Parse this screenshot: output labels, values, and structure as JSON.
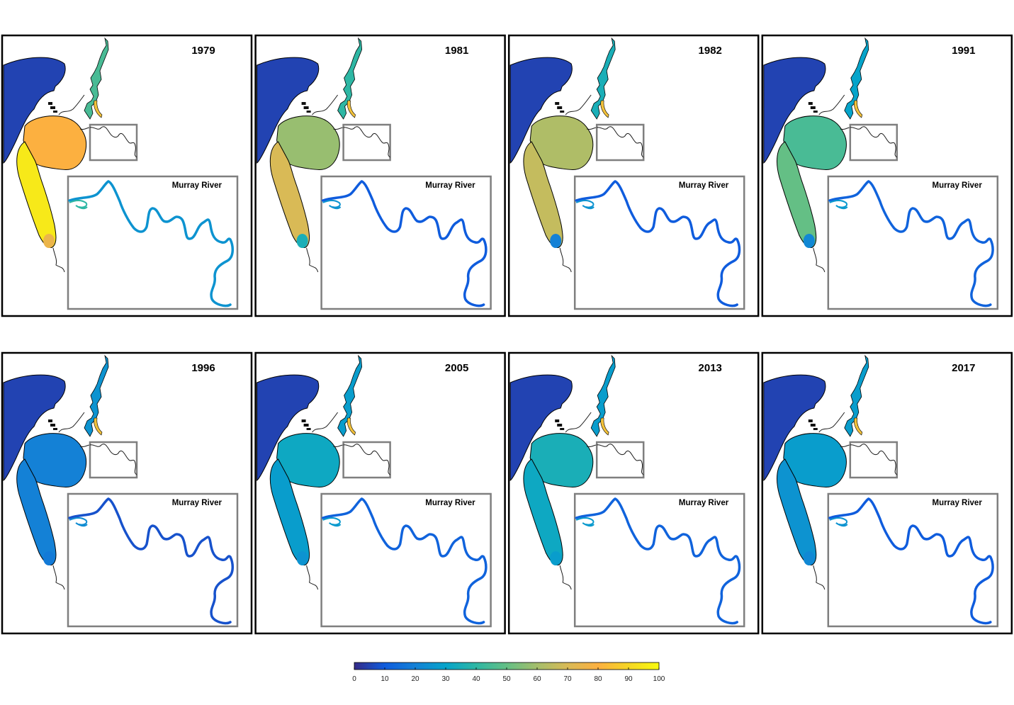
{
  "panels": [
    {
      "year": "1979",
      "inset_label": "Murray River",
      "lake_value": 80,
      "coorong_value": 95,
      "coorong_tip_value": 75,
      "upper_value": 45,
      "inset_value": 25
    },
    {
      "year": "1981",
      "inset_label": "Murray River",
      "lake_value": 58,
      "coorong_value": 70,
      "coorong_tip_value": 35,
      "upper_value": 40,
      "inset_value": 10
    },
    {
      "year": "1982",
      "inset_label": "Murray River",
      "lake_value": 62,
      "coorong_value": 66,
      "coorong_tip_value": 20,
      "upper_value": 35,
      "inset_value": 10
    },
    {
      "year": "1991",
      "inset_label": "Murray River",
      "lake_value": 45,
      "coorong_value": 50,
      "coorong_tip_value": 22,
      "upper_value": 30,
      "inset_value": 12
    },
    {
      "year": "1996",
      "inset_label": "Murray River",
      "lake_value": 20,
      "coorong_value": 20,
      "coorong_tip_value": 18,
      "upper_value": 25,
      "inset_value": 8
    },
    {
      "year": "2005",
      "inset_label": "Murray River",
      "lake_value": 32,
      "coorong_value": 28,
      "coorong_tip_value": 25,
      "upper_value": 28,
      "inset_value": 12
    },
    {
      "year": "2013",
      "inset_label": "Murray River",
      "lake_value": 35,
      "coorong_value": 32,
      "coorong_tip_value": 28,
      "upper_value": 28,
      "inset_value": 12
    },
    {
      "year": "2017",
      "inset_label": "Murray River",
      "lake_value": 28,
      "coorong_value": 25,
      "coorong_tip_value": 22,
      "upper_value": 28,
      "inset_value": 10
    }
  ],
  "colorbar": {
    "min": 0,
    "max": 100,
    "ticks": [
      "0",
      "10",
      "20",
      "30",
      "40",
      "50",
      "60",
      "70",
      "80",
      "90",
      "100"
    ],
    "colormap": "parula"
  }
}
